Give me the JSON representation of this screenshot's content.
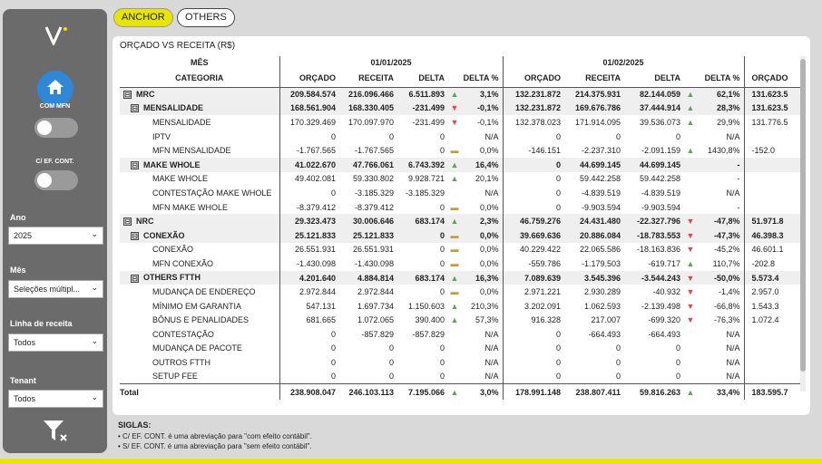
{
  "sidebar": {
    "toggle1_label": "COM MFN",
    "toggle2_label": "C/ EF. CONT.",
    "filters": [
      {
        "label": "Ano",
        "value": "2025"
      },
      {
        "label": "Mês",
        "value": "Seleções múltipl..."
      },
      {
        "label": "Linha de receita",
        "value": "Todos"
      },
      {
        "label": "Tenant",
        "value": "Todos"
      }
    ]
  },
  "tabs": [
    "ANCHOR",
    "OTHERS"
  ],
  "panel_title": "ORÇADO VS RECEITA (R$)",
  "header": {
    "row_label_1": "MÊS",
    "row_label_2": "CATEGORIA",
    "periods": [
      "01/01/2025",
      "01/02/2025"
    ],
    "columns": [
      "ORÇADO",
      "RECEITA",
      "DELTA",
      "DELTA %"
    ],
    "extra_column": "ORÇADO"
  },
  "colors": {
    "up": "#5aa65a",
    "down": "#e04646",
    "flat": "#c99a3c",
    "accent": "#e7e600"
  },
  "rows": [
    {
      "cat": "MRC",
      "level": 0,
      "exp": "⊟",
      "jan": [
        "209.584.574",
        "216.096.466",
        "6.511.893",
        "3,1%",
        "up"
      ],
      "feb": [
        "132.231.872",
        "214.375.931",
        "82.144.059",
        "62,1%",
        "up"
      ],
      "extra": "131.623.5"
    },
    {
      "cat": "MENSALIDADE",
      "level": 1,
      "exp": "⊟",
      "jan": [
        "168.561.904",
        "168.330.405",
        "-231.499",
        "-0,1%",
        "down"
      ],
      "feb": [
        "132.231.872",
        "169.676.786",
        "37.444.914",
        "28,3%",
        "up"
      ],
      "extra": "131.623.5"
    },
    {
      "cat": "MENSALIDADE",
      "level": 2,
      "jan": [
        "170.329.469",
        "170.097.970",
        "-231.499",
        "-0,1%",
        "down"
      ],
      "feb": [
        "132.378.023",
        "171.914.095",
        "39.536.073",
        "29,9%",
        "up"
      ],
      "extra": "131.776.5"
    },
    {
      "cat": "IPTV",
      "level": 2,
      "jan": [
        "0",
        "0",
        "0",
        "N/A",
        ""
      ],
      "feb": [
        "0",
        "0",
        "0",
        "N/A",
        ""
      ],
      "extra": ""
    },
    {
      "cat": "MFN MENSALIDADE",
      "level": 2,
      "jan": [
        "-1.767.565",
        "-1.767.565",
        "0",
        "0,0%",
        "flat"
      ],
      "feb": [
        "-146.151",
        "-2.237.310",
        "-2.091.159",
        "1430,8%",
        "up"
      ],
      "extra": "-152.0"
    },
    {
      "cat": "MAKE WHOLE",
      "level": 1,
      "exp": "⊟",
      "jan": [
        "41.022.670",
        "47.766.061",
        "6.743.392",
        "16,4%",
        "up"
      ],
      "feb": [
        "0",
        "44.699.145",
        "44.699.145",
        "-",
        ""
      ],
      "extra": ""
    },
    {
      "cat": "MAKE WHOLE",
      "level": 2,
      "jan": [
        "49.402.081",
        "59.330.802",
        "9.928.721",
        "20,1%",
        "up"
      ],
      "feb": [
        "0",
        "59.442.258",
        "59.442.258",
        "-",
        ""
      ],
      "extra": ""
    },
    {
      "cat": "CONTESTAÇÃO MAKE WHOLE",
      "level": 2,
      "jan": [
        "0",
        "-3.185.329",
        "-3.185.329",
        "N/A",
        ""
      ],
      "feb": [
        "0",
        "-4.839.519",
        "-4.839.519",
        "N/A",
        ""
      ],
      "extra": ""
    },
    {
      "cat": "MFN MAKE WHOLE",
      "level": 2,
      "jan": [
        "-8.379.412",
        "-8.379.412",
        "0",
        "0,0%",
        "flat"
      ],
      "feb": [
        "0",
        "-9.903.594",
        "-9.903.594",
        "-",
        ""
      ],
      "extra": ""
    },
    {
      "cat": "NRC",
      "level": 0,
      "exp": "⊟",
      "jan": [
        "29.323.473",
        "30.006.646",
        "683.174",
        "2,3%",
        "up"
      ],
      "feb": [
        "46.759.276",
        "24.431.480",
        "-22.327.796",
        "-47,8%",
        "down"
      ],
      "extra": "51.971.8"
    },
    {
      "cat": "CONEXÃO",
      "level": 1,
      "exp": "⊟",
      "jan": [
        "25.121.833",
        "25.121.833",
        "0",
        "0,0%",
        "flat"
      ],
      "feb": [
        "39.669.636",
        "20.886.084",
        "-18.783.553",
        "-47,3%",
        "down"
      ],
      "extra": "46.398.3"
    },
    {
      "cat": "CONEXÃO",
      "level": 2,
      "jan": [
        "26.551.931",
        "26.551.931",
        "0",
        "0,0%",
        "flat"
      ],
      "feb": [
        "40.229.422",
        "22.065.586",
        "-18.163.836",
        "-45,2%",
        "down"
      ],
      "extra": "46.601.1"
    },
    {
      "cat": "MFN CONEXÃO",
      "level": 2,
      "jan": [
        "-1.430.098",
        "-1.430.098",
        "0",
        "0,0%",
        "flat"
      ],
      "feb": [
        "-559.786",
        "-1.179.503",
        "-619.717",
        "110,7%",
        "up"
      ],
      "extra": "-202.8"
    },
    {
      "cat": "OTHERS FTTH",
      "level": 1,
      "exp": "⊟",
      "jan": [
        "4.201.640",
        "4.884.814",
        "683.174",
        "16,3%",
        "up"
      ],
      "feb": [
        "7.089.639",
        "3.545.396",
        "-3.544.243",
        "-50,0%",
        "down"
      ],
      "extra": "5.573.4"
    },
    {
      "cat": "MUDANÇA DE ENDEREÇO",
      "level": 2,
      "jan": [
        "2.972.844",
        "2.972.844",
        "0",
        "0,0%",
        "flat"
      ],
      "feb": [
        "2.971.221",
        "2.930.289",
        "-40.932",
        "-1,4%",
        "down"
      ],
      "extra": "2.957.0"
    },
    {
      "cat": "MÍNIMO EM GARANTIA",
      "level": 2,
      "jan": [
        "547.131",
        "1.697.734",
        "1.150.603",
        "210,3%",
        "up"
      ],
      "feb": [
        "3.202.091",
        "1.062.593",
        "-2.139.498",
        "-66,8%",
        "down"
      ],
      "extra": "1.543.3"
    },
    {
      "cat": "BÔNUS E PENALIDADES",
      "level": 2,
      "jan": [
        "681.665",
        "1.072.065",
        "390.400",
        "57,3%",
        "up"
      ],
      "feb": [
        "916.328",
        "217.007",
        "-699.320",
        "-76,3%",
        "down"
      ],
      "extra": "1.072.4"
    },
    {
      "cat": "CONTESTAÇÃO",
      "level": 2,
      "jan": [
        "0",
        "-857.829",
        "-857.829",
        "N/A",
        ""
      ],
      "feb": [
        "0",
        "-664.493",
        "-664.493",
        "N/A",
        ""
      ],
      "extra": ""
    },
    {
      "cat": "MUDANÇA DE PACOTE",
      "level": 2,
      "jan": [
        "0",
        "0",
        "0",
        "N/A",
        ""
      ],
      "feb": [
        "0",
        "0",
        "0",
        "N/A",
        ""
      ],
      "extra": ""
    },
    {
      "cat": "OUTROS FTTH",
      "level": 2,
      "jan": [
        "0",
        "0",
        "0",
        "N/A",
        ""
      ],
      "feb": [
        "0",
        "0",
        "0",
        "N/A",
        ""
      ],
      "extra": ""
    },
    {
      "cat": "SETUP FEE",
      "level": 2,
      "jan": [
        "0",
        "0",
        "0",
        "N/A",
        ""
      ],
      "feb": [
        "0",
        "0",
        "0",
        "N/A",
        ""
      ],
      "extra": ""
    }
  ],
  "total": {
    "cat": "Total",
    "jan": [
      "238.908.047",
      "246.103.113",
      "7.195.066",
      "3,0%",
      "up"
    ],
    "feb": [
      "178.991.148",
      "238.807.411",
      "59.816.263",
      "33,4%",
      "up"
    ],
    "extra": "183.595.7"
  },
  "notes": {
    "title": "SIGLAS:",
    "items": [
      "• C/ EF. CONT. é uma abreviação para \"com efeito contábil\".",
      "• S/ EF. CONT. é uma abreviação para \"sem efeito contábil\"."
    ]
  }
}
